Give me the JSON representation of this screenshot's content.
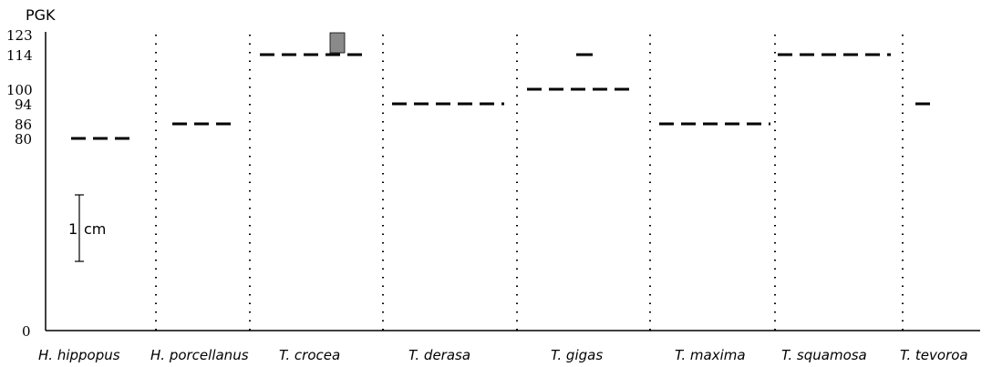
{
  "title": "PGK",
  "y_ticks": [
    "123",
    "114",
    "100",
    "94",
    "86",
    "80",
    "0"
  ],
  "scale_bar": {
    "number": "1",
    "unit": "cm"
  },
  "chart_data": {
    "type": "zymogram",
    "title": "PGK",
    "xlabel": "",
    "ylabel": "",
    "ylim": [
      0,
      125
    ],
    "y_ticks": [
      0,
      80,
      86,
      94,
      100,
      114,
      123
    ],
    "categories": [
      "H. hippopus",
      "H. porcellanus",
      "T. crocea",
      "T. derasa",
      "T. gigas",
      "T. maxima",
      "T. squamosa",
      "T. tevoroa"
    ],
    "bands": [
      {
        "species": "H. hippopus",
        "mobilities": [
          80
        ]
      },
      {
        "species": "H. porcellanus",
        "mobilities": [
          86
        ]
      },
      {
        "species": "T. crocea",
        "mobilities": [
          114,
          123
        ],
        "shaded": [
          123
        ]
      },
      {
        "species": "T. derasa",
        "mobilities": [
          94
        ]
      },
      {
        "species": "T. gigas",
        "mobilities": [
          100,
          114
        ]
      },
      {
        "species": "T. maxima",
        "mobilities": [
          86
        ]
      },
      {
        "species": "T. squamosa",
        "mobilities": [
          114
        ]
      },
      {
        "species": "T. tevoroa",
        "mobilities": [
          94
        ]
      }
    ]
  }
}
